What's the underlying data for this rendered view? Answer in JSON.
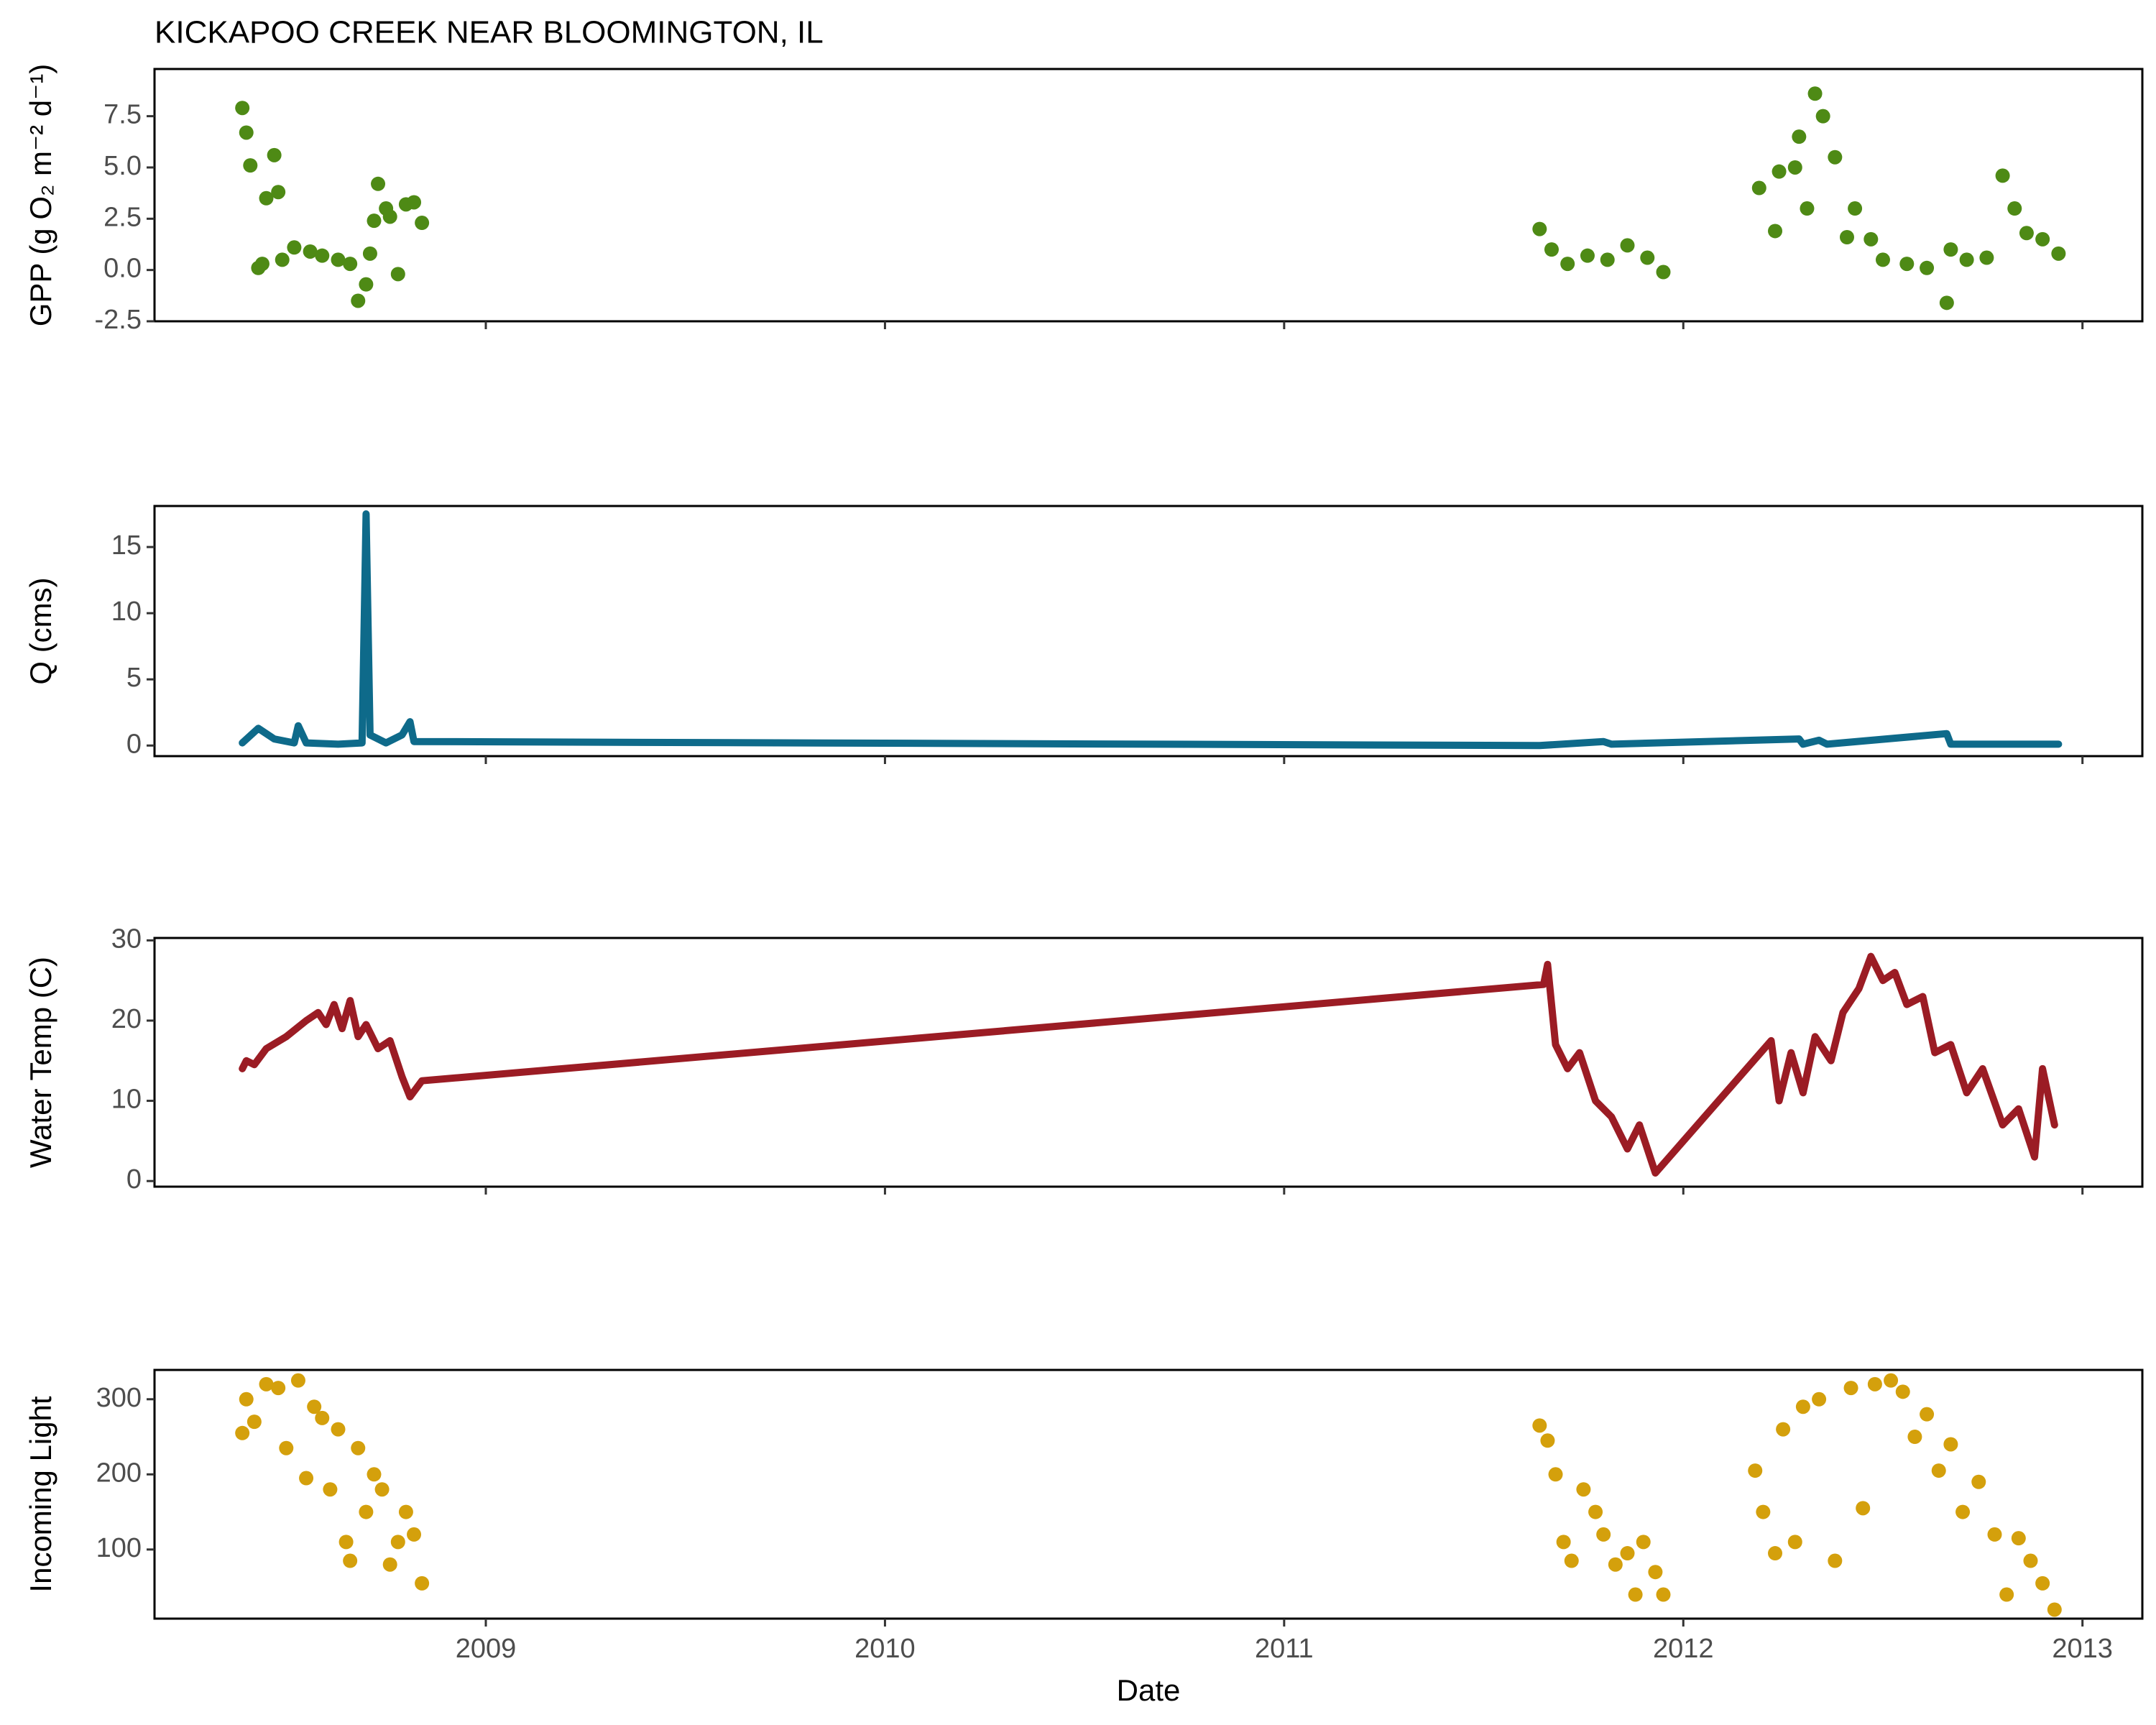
{
  "chart_data": [
    {
      "type": "scatter",
      "title": "KICKAPOO CREEK NEAR BLOOMINGTON, IL",
      "ylabel": "GPP (g  O₂ m⁻² d⁻¹)",
      "color": "#4e8a15",
      "x": [
        2008.39,
        2008.4,
        2008.41,
        2008.43,
        2008.44,
        2008.45,
        2008.47,
        2008.48,
        2008.49,
        2008.52,
        2008.56,
        2008.59,
        2008.63,
        2008.66,
        2008.68,
        2008.7,
        2008.71,
        2008.72,
        2008.73,
        2008.75,
        2008.76,
        2008.78,
        2008.8,
        2008.82,
        2008.84,
        2011.64,
        2011.67,
        2011.71,
        2011.76,
        2011.81,
        2011.86,
        2011.91,
        2011.95,
        2012.19,
        2012.23,
        2012.24,
        2012.28,
        2012.29,
        2012.31,
        2012.33,
        2012.35,
        2012.38,
        2012.41,
        2012.43,
        2012.47,
        2012.5,
        2012.56,
        2012.61,
        2012.66,
        2012.67,
        2012.71,
        2012.76,
        2012.8,
        2012.83,
        2012.86,
        2012.9,
        2012.94
      ],
      "values": [
        7.9,
        6.7,
        5.1,
        0.1,
        0.3,
        3.5,
        5.6,
        3.8,
        0.5,
        1.1,
        0.9,
        0.7,
        0.5,
        0.3,
        -1.5,
        -0.7,
        0.8,
        2.4,
        4.2,
        3.0,
        2.6,
        -0.2,
        3.2,
        3.3,
        2.3,
        2.0,
        1.0,
        0.3,
        0.7,
        0.5,
        1.2,
        0.6,
        -0.1,
        4.0,
        1.9,
        4.8,
        5.0,
        6.5,
        3.0,
        8.6,
        7.5,
        5.5,
        1.6,
        3.0,
        1.5,
        0.5,
        0.3,
        0.1,
        -1.6,
        1.0,
        0.5,
        0.6,
        4.6,
        3.0,
        1.8,
        1.5,
        0.8
      ],
      "xlim": [
        2008.17,
        2013.15
      ],
      "xticks": [
        2009,
        2010,
        2011,
        2012,
        2013
      ],
      "ylim": [
        -2.5,
        9.8
      ],
      "yticks": [
        -2.5,
        {
          "value": 0,
          "label": "0.0"
        },
        2.5,
        {
          "value": 5,
          "label": "5.0"
        },
        7.5
      ]
    },
    {
      "type": "line",
      "ylabel": "Q (cms)",
      "color": "#0e6a8a",
      "x": [
        2008.39,
        2008.43,
        2008.47,
        2008.52,
        2008.53,
        2008.55,
        2008.63,
        2008.69,
        2008.7,
        2008.71,
        2008.75,
        2008.79,
        2008.81,
        2008.82,
        2011.64,
        2011.8,
        2011.82,
        2012.29,
        2012.3,
        2012.34,
        2012.36,
        2012.66,
        2012.67,
        2012.94
      ],
      "values": [
        0.2,
        1.3,
        0.5,
        0.2,
        1.5,
        0.2,
        0.1,
        0.2,
        17.5,
        0.8,
        0.2,
        0.8,
        1.8,
        0.3,
        0.0,
        0.3,
        0.1,
        0.5,
        0.1,
        0.4,
        0.1,
        0.9,
        0.1,
        0.1
      ],
      "xlim": [
        2008.17,
        2013.15
      ],
      "xticks": [
        2009,
        2010,
        2011,
        2012,
        2013
      ],
      "ylim": [
        -0.8,
        18.1
      ],
      "yticks": [
        0,
        5,
        10,
        15
      ]
    },
    {
      "type": "line",
      "ylabel": "Water Temp (C)",
      "color": "#9b1c24",
      "x": [
        2008.39,
        2008.4,
        2008.42,
        2008.45,
        2008.5,
        2008.55,
        2008.58,
        2008.6,
        2008.62,
        2008.64,
        2008.66,
        2008.68,
        2008.7,
        2008.73,
        2008.76,
        2008.79,
        2008.81,
        2008.84,
        2011.65,
        2011.66,
        2011.68,
        2011.71,
        2011.74,
        2011.78,
        2011.82,
        2011.86,
        2011.89,
        2011.93,
        2012.22,
        2012.24,
        2012.27,
        2012.3,
        2012.33,
        2012.37,
        2012.4,
        2012.44,
        2012.47,
        2012.5,
        2012.53,
        2012.56,
        2012.6,
        2012.63,
        2012.67,
        2012.71,
        2012.75,
        2012.8,
        2012.84,
        2012.88,
        2012.9,
        2012.93
      ],
      "values": [
        14,
        15,
        14.5,
        16.5,
        18,
        20,
        21,
        19.5,
        22,
        19,
        22.5,
        18,
        19.5,
        16.5,
        17.5,
        13,
        10.5,
        12.5,
        24.5,
        27,
        17,
        14,
        16,
        10,
        8,
        4,
        7,
        1,
        17.5,
        10,
        16,
        11,
        18,
        15,
        21,
        24,
        28,
        25,
        26,
        22,
        23,
        16,
        17,
        11,
        14,
        7,
        9,
        3,
        14,
        7
      ],
      "xlim": [
        2008.17,
        2013.15
      ],
      "xticks": [
        2009,
        2010,
        2011,
        2012,
        2013
      ],
      "ylim": [
        -0.7,
        30.3
      ],
      "yticks": [
        0,
        10,
        20,
        30
      ]
    },
    {
      "type": "scatter",
      "ylabel": "Incoming Light",
      "xlabel": "Date",
      "color": "#d4a00c",
      "x": [
        2008.39,
        2008.4,
        2008.42,
        2008.45,
        2008.48,
        2008.5,
        2008.53,
        2008.55,
        2008.57,
        2008.59,
        2008.61,
        2008.63,
        2008.65,
        2008.66,
        2008.68,
        2008.7,
        2008.72,
        2008.74,
        2008.76,
        2008.78,
        2008.8,
        2008.82,
        2008.84,
        2011.64,
        2011.66,
        2011.68,
        2011.7,
        2011.72,
        2011.75,
        2011.78,
        2011.8,
        2011.83,
        2011.86,
        2011.88,
        2011.9,
        2011.93,
        2011.95,
        2012.18,
        2012.2,
        2012.23,
        2012.25,
        2012.28,
        2012.3,
        2012.34,
        2012.38,
        2012.42,
        2012.45,
        2012.48,
        2012.52,
        2012.55,
        2012.58,
        2012.61,
        2012.64,
        2012.67,
        2012.7,
        2012.74,
        2012.78,
        2012.81,
        2012.84,
        2012.87,
        2012.9,
        2012.93
      ],
      "values": [
        255,
        300,
        270,
        320,
        315,
        235,
        325,
        195,
        290,
        275,
        180,
        260,
        110,
        85,
        235,
        150,
        200,
        180,
        80,
        110,
        150,
        120,
        55,
        265,
        245,
        200,
        110,
        85,
        180,
        150,
        120,
        80,
        95,
        40,
        110,
        70,
        40,
        205,
        150,
        95,
        260,
        110,
        290,
        300,
        85,
        315,
        155,
        320,
        325,
        310,
        250,
        280,
        205,
        240,
        150,
        190,
        120,
        40,
        115,
        85,
        55,
        20
      ],
      "xlim": [
        2008.17,
        2013.15
      ],
      "xticks": [
        2009,
        2010,
        2011,
        2012,
        2013
      ],
      "ylim": [
        8,
        339
      ],
      "yticks": [
        100,
        200,
        300
      ]
    }
  ]
}
